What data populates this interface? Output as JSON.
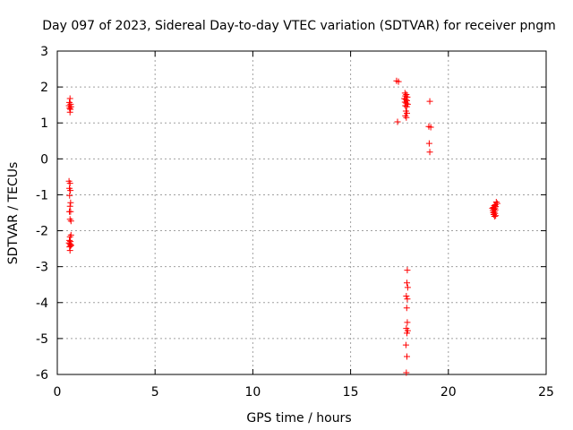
{
  "chart_data": {
    "type": "scatter",
    "title": "Day 097 of 2023, Sidereal Day-to-day VTEC variation (SDTVAR) for receiver pngm",
    "xlabel": "GPS time / hours",
    "ylabel": "SDTVAR / TECUs",
    "xlim": [
      0,
      25
    ],
    "ylim": [
      -6,
      3
    ],
    "xticks": [
      "0",
      "5",
      "10",
      "15",
      "20",
      "25"
    ],
    "yticks": [
      "3",
      "2",
      "1",
      "0",
      "-1",
      "-2",
      "-3",
      "-4",
      "-5",
      "-6"
    ],
    "grid": true,
    "marker": "+",
    "colors": {
      "marker": "#ff0000",
      "grid": "#a0a0a0",
      "frame": "#000000"
    },
    "series": [
      {
        "points": [
          [
            0.65,
            1.68
          ],
          [
            0.62,
            1.57
          ],
          [
            0.68,
            1.52
          ],
          [
            0.6,
            1.48
          ],
          [
            0.7,
            1.45
          ],
          [
            0.63,
            1.41
          ],
          [
            0.67,
            1.38
          ],
          [
            0.65,
            1.3
          ],
          [
            0.6,
            -0.62
          ],
          [
            0.65,
            -0.68
          ],
          [
            0.62,
            -0.82
          ],
          [
            0.67,
            -0.88
          ],
          [
            0.63,
            -1.02
          ],
          [
            0.68,
            -1.22
          ],
          [
            0.65,
            -1.32
          ],
          [
            0.62,
            -1.47
          ],
          [
            0.68,
            -1.47
          ],
          [
            0.65,
            -1.68
          ],
          [
            0.7,
            -1.73
          ],
          [
            0.7,
            -2.12
          ],
          [
            0.65,
            -2.17
          ],
          [
            0.62,
            -2.27
          ],
          [
            0.67,
            -2.3
          ],
          [
            0.6,
            -2.34
          ],
          [
            0.65,
            -2.37
          ],
          [
            0.7,
            -2.4
          ],
          [
            0.63,
            -2.45
          ],
          [
            0.68,
            -2.42
          ],
          [
            0.65,
            -2.55
          ],
          [
            17.35,
            2.17
          ],
          [
            17.45,
            2.15
          ],
          [
            17.4,
            1.03
          ],
          [
            17.78,
            1.83
          ],
          [
            17.85,
            1.79
          ],
          [
            17.8,
            1.75
          ],
          [
            17.9,
            1.72
          ],
          [
            17.75,
            1.68
          ],
          [
            17.82,
            1.65
          ],
          [
            17.88,
            1.62
          ],
          [
            17.78,
            1.58
          ],
          [
            17.85,
            1.55
          ],
          [
            17.92,
            1.52
          ],
          [
            17.8,
            1.48
          ],
          [
            17.87,
            1.45
          ],
          [
            17.83,
            1.33
          ],
          [
            17.88,
            1.27
          ],
          [
            17.8,
            1.2
          ],
          [
            17.85,
            1.15
          ],
          [
            17.9,
            -3.1
          ],
          [
            17.88,
            -3.45
          ],
          [
            17.92,
            -3.58
          ],
          [
            17.85,
            -3.82
          ],
          [
            17.9,
            -3.9
          ],
          [
            17.87,
            -4.15
          ],
          [
            17.9,
            -4.55
          ],
          [
            17.85,
            -4.72
          ],
          [
            17.92,
            -4.78
          ],
          [
            17.88,
            -4.85
          ],
          [
            17.83,
            -5.18
          ],
          [
            17.88,
            -5.5
          ],
          [
            17.85,
            -5.95
          ],
          [
            19.05,
            1.6
          ],
          [
            19.0,
            0.9
          ],
          [
            19.1,
            0.88
          ],
          [
            19.02,
            0.43
          ],
          [
            19.05,
            0.19
          ],
          [
            22.45,
            -1.2
          ],
          [
            22.5,
            -1.24
          ],
          [
            22.4,
            -1.28
          ],
          [
            22.35,
            -1.3
          ],
          [
            22.42,
            -1.33
          ],
          [
            22.3,
            -1.35
          ],
          [
            22.38,
            -1.37
          ],
          [
            22.25,
            -1.38
          ],
          [
            22.33,
            -1.4
          ],
          [
            22.4,
            -1.42
          ],
          [
            22.28,
            -1.44
          ],
          [
            22.35,
            -1.47
          ],
          [
            22.3,
            -1.5
          ],
          [
            22.38,
            -1.52
          ],
          [
            22.32,
            -1.55
          ],
          [
            22.42,
            -1.58
          ],
          [
            22.36,
            -1.6
          ]
        ]
      }
    ]
  }
}
